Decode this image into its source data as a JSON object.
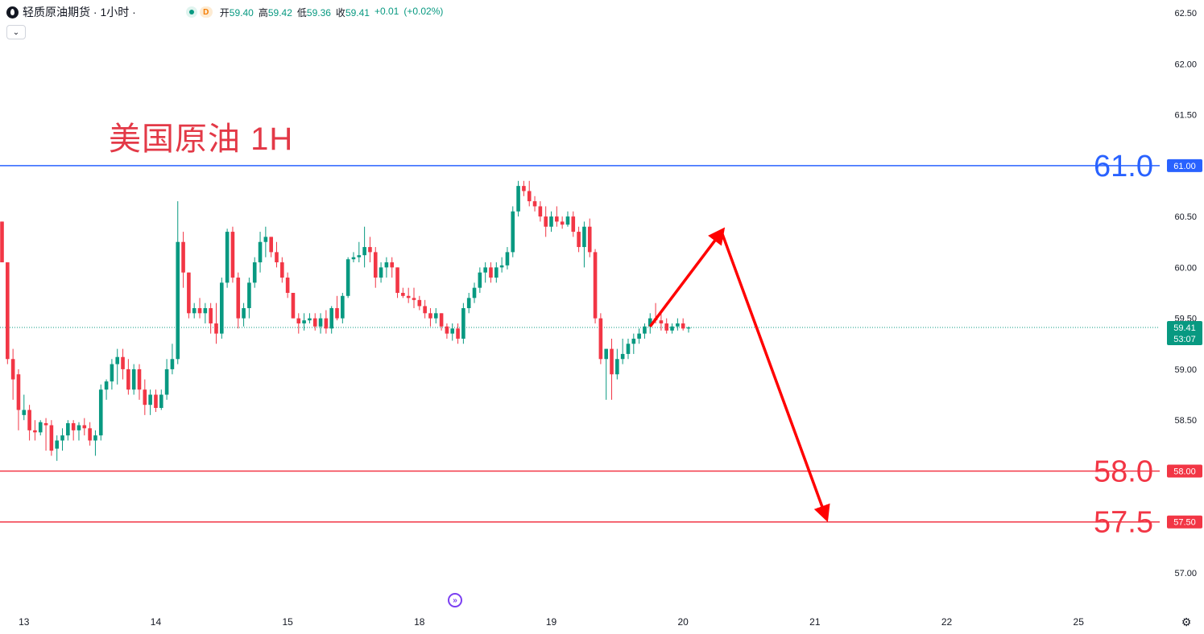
{
  "header": {
    "symbol_title": "轻质原油期货 · 1小时 ·",
    "badge_letter": "D",
    "ohlc": [
      {
        "label": "开",
        "value": "59.40"
      },
      {
        "label": "高",
        "value": "59.42"
      },
      {
        "label": "低",
        "value": "59.36"
      },
      {
        "label": "收",
        "value": "59.41"
      },
      {
        "label": "",
        "value": "+0.01"
      },
      {
        "label": "",
        "value": "(+0.02%)"
      }
    ]
  },
  "collapse_glyph": "⌄",
  "annotation_title": "美国原油 1H",
  "colors": {
    "up": "#089981",
    "down": "#f23645",
    "resistance": "#2962ff",
    "support": "#f23645",
    "arrow": "#ff0000",
    "title": "#e33947"
  },
  "chart_data": {
    "type": "candlestick",
    "timeframe": "1H",
    "y_axis": {
      "ticks": [
        "62.50",
        "62.00",
        "61.50",
        "61.00",
        "60.50",
        "60.00",
        "59.50",
        "59.00",
        "58.50",
        "58.00",
        "57.50",
        "57.00"
      ],
      "ylim": [
        56.7,
        62.6
      ]
    },
    "x_axis": {
      "ticks": [
        "13",
        "14",
        "15",
        "18",
        "19",
        "20",
        "21",
        "22",
        "25"
      ]
    },
    "current_price": {
      "value": 59.41,
      "label": "59.41",
      "countdown": "53:07"
    },
    "levels": [
      {
        "value": 61.0,
        "label": "61.0",
        "axis_label": "61.00",
        "kind": "resistance"
      },
      {
        "value": 58.0,
        "label": "58.0",
        "axis_label": "58.00",
        "kind": "support"
      },
      {
        "value": 57.5,
        "label": "57.5",
        "axis_label": "57.50",
        "kind": "support"
      }
    ],
    "projection": [
      {
        "bar": 118,
        "price": 59.42
      },
      {
        "bar": 131,
        "price": 60.35
      },
      {
        "bar": 150,
        "price": 57.55
      }
    ],
    "candles": [
      [
        60.45,
        60.45,
        60.05,
        60.05
      ],
      [
        60.05,
        60.05,
        59.05,
        59.1
      ],
      [
        59.1,
        59.2,
        58.7,
        58.9
      ],
      [
        58.95,
        59.0,
        58.4,
        58.6
      ],
      [
        58.55,
        58.75,
        58.5,
        58.6
      ],
      [
        58.6,
        58.65,
        58.3,
        58.4
      ],
      [
        58.4,
        58.5,
        58.3,
        58.38
      ],
      [
        58.38,
        58.5,
        58.35,
        58.48
      ],
      [
        58.47,
        58.52,
        58.2,
        58.45
      ],
      [
        58.45,
        58.5,
        58.15,
        58.2
      ],
      [
        58.22,
        58.35,
        58.1,
        58.3
      ],
      [
        58.3,
        58.42,
        58.2,
        58.35
      ],
      [
        58.35,
        58.5,
        58.3,
        58.47
      ],
      [
        58.47,
        58.5,
        58.3,
        58.4
      ],
      [
        58.4,
        58.48,
        58.3,
        58.45
      ],
      [
        58.45,
        58.52,
        58.35,
        58.42
      ],
      [
        58.42,
        58.48,
        58.25,
        58.3
      ],
      [
        58.3,
        58.4,
        58.15,
        58.35
      ],
      [
        58.35,
        58.85,
        58.3,
        58.8
      ],
      [
        58.8,
        58.9,
        58.7,
        58.88
      ],
      [
        58.88,
        59.1,
        58.8,
        59.05
      ],
      [
        59.05,
        59.2,
        58.85,
        59.12
      ],
      [
        59.12,
        59.2,
        58.9,
        59.0
      ],
      [
        59.0,
        59.1,
        58.75,
        58.8
      ],
      [
        58.8,
        59.05,
        58.75,
        59.0
      ],
      [
        59.0,
        59.05,
        58.7,
        58.8
      ],
      [
        58.8,
        58.9,
        58.55,
        58.65
      ],
      [
        58.65,
        58.8,
        58.55,
        58.75
      ],
      [
        58.75,
        58.8,
        58.58,
        58.62
      ],
      [
        58.62,
        58.8,
        58.6,
        58.75
      ],
      [
        58.75,
        59.1,
        58.7,
        59.0
      ],
      [
        59.0,
        59.25,
        58.95,
        59.1
      ],
      [
        59.1,
        60.65,
        59.05,
        60.25
      ],
      [
        60.25,
        60.35,
        59.8,
        59.95
      ],
      [
        59.95,
        59.95,
        59.5,
        59.55
      ],
      [
        59.55,
        59.65,
        59.5,
        59.6
      ],
      [
        59.6,
        59.7,
        59.5,
        59.55
      ],
      [
        59.55,
        59.65,
        59.45,
        59.6
      ],
      [
        59.6,
        59.65,
        59.35,
        59.45
      ],
      [
        59.45,
        59.65,
        59.25,
        59.35
      ],
      [
        59.35,
        59.9,
        59.3,
        59.85
      ],
      [
        59.85,
        60.38,
        59.8,
        60.35
      ],
      [
        60.35,
        60.4,
        59.85,
        59.9
      ],
      [
        59.9,
        59.95,
        59.4,
        59.5
      ],
      [
        59.5,
        59.65,
        59.42,
        59.6
      ],
      [
        59.6,
        59.9,
        59.5,
        59.85
      ],
      [
        59.85,
        60.1,
        59.8,
        60.05
      ],
      [
        60.05,
        60.35,
        59.95,
        60.25
      ],
      [
        60.25,
        60.4,
        60.1,
        60.3
      ],
      [
        60.3,
        60.3,
        60.1,
        60.15
      ],
      [
        60.15,
        60.25,
        60.0,
        60.05
      ],
      [
        60.05,
        60.1,
        59.85,
        59.9
      ],
      [
        59.9,
        59.95,
        59.7,
        59.75
      ],
      [
        59.75,
        59.75,
        59.5,
        59.5
      ],
      [
        59.5,
        59.55,
        59.35,
        59.45
      ],
      [
        59.45,
        59.55,
        59.38,
        59.48
      ],
      [
        59.48,
        59.55,
        59.45,
        59.5
      ],
      [
        59.5,
        59.55,
        59.38,
        59.42
      ],
      [
        59.42,
        59.55,
        59.35,
        59.5
      ],
      [
        59.5,
        59.58,
        59.35,
        59.4
      ],
      [
        59.4,
        59.62,
        59.35,
        59.6
      ],
      [
        59.6,
        59.72,
        59.48,
        59.5
      ],
      [
        59.5,
        59.75,
        59.45,
        59.72
      ],
      [
        59.72,
        60.1,
        59.7,
        60.08
      ],
      [
        60.08,
        60.15,
        60.05,
        60.1
      ],
      [
        60.1,
        60.25,
        60.05,
        60.12
      ],
      [
        60.12,
        60.4,
        60.0,
        60.2
      ],
      [
        60.2,
        60.3,
        60.05,
        60.15
      ],
      [
        60.15,
        60.2,
        59.8,
        59.9
      ],
      [
        59.9,
        60.05,
        59.85,
        60.0
      ],
      [
        60.0,
        60.1,
        59.9,
        60.05
      ],
      [
        60.05,
        60.1,
        59.9,
        60.0
      ],
      [
        60.0,
        60.0,
        59.7,
        59.75
      ],
      [
        59.75,
        59.8,
        59.7,
        59.72
      ],
      [
        59.72,
        59.8,
        59.65,
        59.7
      ],
      [
        59.7,
        59.8,
        59.6,
        59.68
      ],
      [
        59.68,
        59.72,
        59.58,
        59.62
      ],
      [
        59.62,
        59.68,
        59.5,
        59.55
      ],
      [
        59.55,
        59.6,
        59.42,
        59.5
      ],
      [
        59.5,
        59.6,
        59.45,
        59.55
      ],
      [
        59.55,
        59.55,
        59.38,
        59.42
      ],
      [
        59.42,
        59.45,
        59.3,
        59.35
      ],
      [
        59.35,
        59.45,
        59.28,
        59.4
      ],
      [
        59.4,
        59.45,
        59.25,
        59.3
      ],
      [
        59.3,
        59.65,
        59.25,
        59.6
      ],
      [
        59.6,
        59.75,
        59.55,
        59.7
      ],
      [
        59.7,
        59.85,
        59.65,
        59.8
      ],
      [
        59.8,
        60.0,
        59.75,
        59.95
      ],
      [
        59.95,
        60.05,
        59.85,
        60.0
      ],
      [
        60.0,
        60.05,
        59.85,
        59.9
      ],
      [
        59.9,
        60.05,
        59.85,
        60.0
      ],
      [
        60.0,
        60.1,
        59.95,
        60.02
      ],
      [
        60.02,
        60.2,
        59.98,
        60.15
      ],
      [
        60.15,
        60.6,
        60.1,
        60.55
      ],
      [
        60.55,
        60.85,
        60.5,
        60.8
      ],
      [
        60.8,
        60.85,
        60.7,
        60.75
      ],
      [
        60.75,
        60.85,
        60.6,
        60.65
      ],
      [
        60.65,
        60.7,
        60.55,
        60.6
      ],
      [
        60.6,
        60.65,
        60.45,
        60.5
      ],
      [
        60.5,
        60.6,
        60.3,
        60.4
      ],
      [
        60.4,
        60.55,
        60.35,
        60.5
      ],
      [
        60.5,
        60.6,
        60.4,
        60.45
      ],
      [
        60.45,
        60.5,
        60.38,
        60.42
      ],
      [
        60.42,
        60.55,
        60.4,
        60.5
      ],
      [
        60.5,
        60.55,
        60.3,
        60.35
      ],
      [
        60.35,
        60.4,
        60.15,
        60.2
      ],
      [
        60.2,
        60.45,
        60.0,
        60.4
      ],
      [
        60.4,
        60.48,
        60.1,
        60.15
      ],
      [
        60.15,
        60.18,
        59.45,
        59.5
      ],
      [
        59.5,
        59.55,
        59.05,
        59.1
      ],
      [
        59.1,
        59.2,
        58.7,
        59.2
      ],
      [
        59.2,
        59.3,
        58.7,
        58.95
      ],
      [
        58.95,
        59.2,
        58.9,
        59.1
      ],
      [
        59.1,
        59.3,
        59.05,
        59.15
      ],
      [
        59.15,
        59.3,
        59.1,
        59.25
      ],
      [
        59.25,
        59.35,
        59.15,
        59.3
      ],
      [
        59.3,
        59.4,
        59.25,
        59.35
      ],
      [
        59.35,
        59.45,
        59.3,
        59.42
      ],
      [
        59.42,
        59.55,
        59.35,
        59.5
      ],
      [
        59.5,
        59.65,
        59.45,
        59.48
      ],
      [
        59.48,
        59.55,
        59.38,
        59.45
      ],
      [
        59.45,
        59.5,
        59.35,
        59.38
      ],
      [
        59.38,
        59.45,
        59.35,
        59.42
      ],
      [
        59.42,
        59.5,
        59.38,
        59.45
      ],
      [
        59.45,
        59.5,
        59.38,
        59.4
      ],
      [
        59.4,
        59.42,
        59.36,
        59.41
      ]
    ]
  }
}
